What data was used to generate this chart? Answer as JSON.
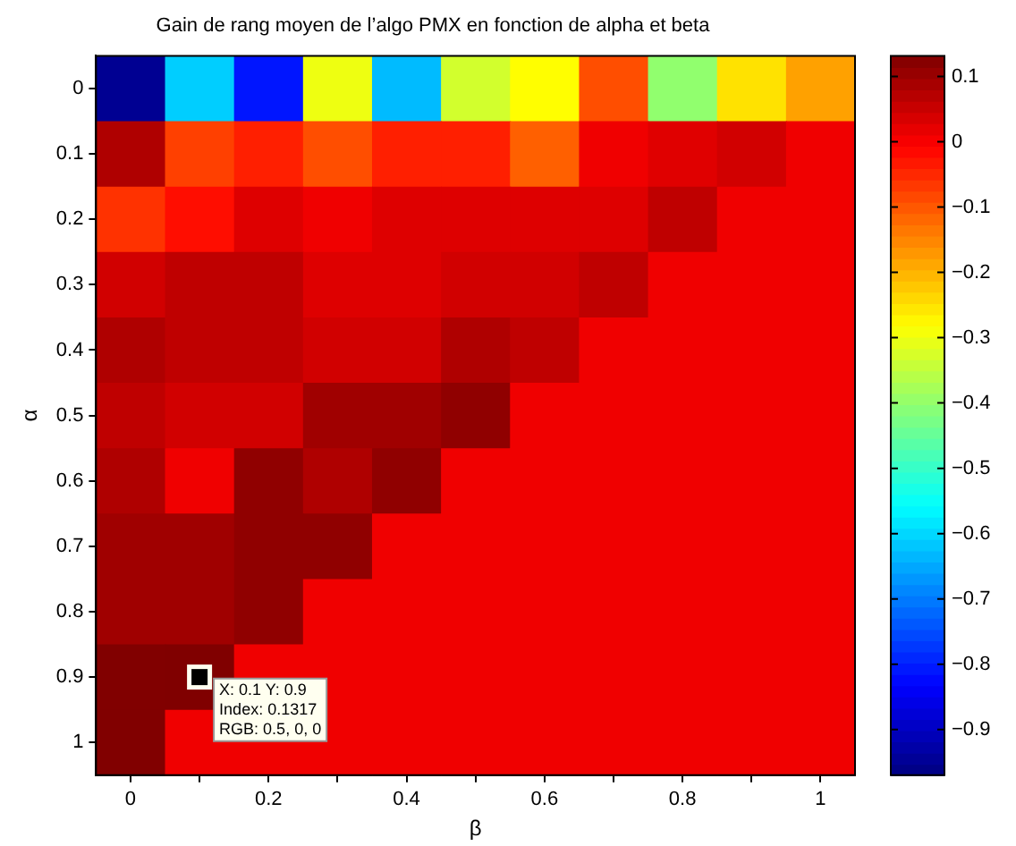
{
  "chart_data": {
    "type": "heatmap",
    "title": "Gain de rang moyen de l’algo PMX en fonction de alpha et beta",
    "xlabel": "β",
    "ylabel": "α",
    "categories": [
      "0",
      null,
      "0.2",
      null,
      "0.4",
      null,
      "0.6",
      null,
      "0.8",
      null,
      "1"
    ],
    "y_categories": [
      "0",
      "0.1",
      "0.2",
      "0.3",
      "0.4",
      "0.5",
      "0.6",
      "0.7",
      "0.8",
      "0.9",
      "1"
    ],
    "cells": [
      [
        -0.95,
        -0.61,
        -0.81,
        -0.3,
        -0.63,
        -0.33,
        -0.28,
        -0.09,
        -0.4,
        -0.25,
        -0.18
      ],
      [
        0.08,
        -0.075,
        -0.04,
        -0.09,
        -0.04,
        -0.04,
        -0.11,
        0.01,
        0.027,
        0.044,
        0.01
      ],
      [
        -0.06,
        -0.02,
        0.03,
        0.01,
        0.03,
        0.03,
        0.03,
        0.03,
        0.063,
        0.01,
        0.01
      ],
      [
        0.044,
        0.063,
        0.063,
        0.03,
        0.03,
        0.044,
        0.044,
        0.063,
        0.01,
        0.01,
        0.01
      ],
      [
        0.08,
        0.063,
        0.063,
        0.044,
        0.044,
        0.08,
        0.063,
        0.01,
        0.01,
        0.01,
        0.01
      ],
      [
        0.063,
        0.044,
        0.044,
        0.097,
        0.097,
        0.114,
        0.01,
        0.01,
        0.01,
        0.01,
        0.01
      ],
      [
        0.08,
        0.01,
        0.114,
        0.08,
        0.114,
        0.01,
        0.01,
        0.01,
        0.01,
        0.01,
        0.01
      ],
      [
        0.097,
        0.097,
        0.114,
        0.114,
        0.01,
        0.01,
        0.01,
        0.01,
        0.01,
        0.01,
        0.01
      ],
      [
        0.097,
        0.097,
        0.114,
        0.01,
        0.01,
        0.01,
        0.01,
        0.01,
        0.01,
        0.01,
        0.01
      ],
      [
        0.13,
        0.1317,
        0.01,
        0.01,
        0.01,
        0.01,
        0.01,
        0.01,
        0.01,
        0.01,
        0.01
      ],
      [
        0.13,
        0.01,
        0.01,
        0.01,
        0.01,
        0.01,
        0.01,
        0.01,
        0.01,
        0.01,
        0.01
      ]
    ],
    "clim": [
      -0.97,
      0.1317
    ],
    "cticks": [
      -0.9,
      -0.8,
      -0.7,
      -0.6,
      -0.5,
      -0.4,
      -0.3,
      -0.2,
      -0.1,
      0,
      0.1
    ],
    "annotations": [
      "X: 0.1 Y: 0.9\nIndex: 0.1317\nRGB: 0.5, 0, 0"
    ]
  }
}
